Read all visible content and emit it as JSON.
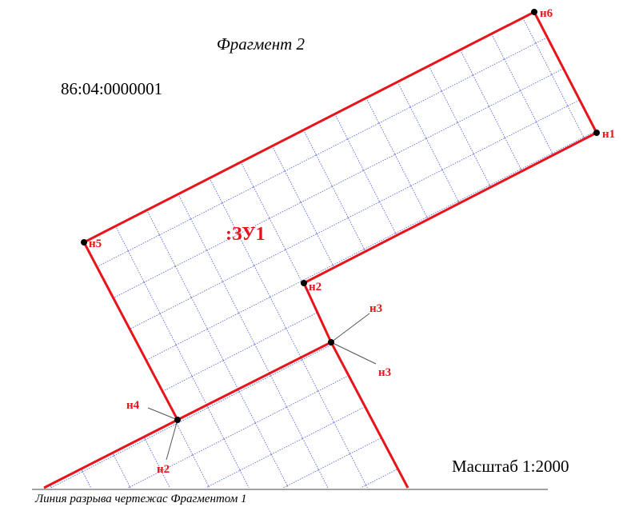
{
  "header": {
    "title": "Фрагмент 2",
    "quarter": "86:04:0000001"
  },
  "parcel": {
    "label": ":ЗУ1"
  },
  "points": {
    "n1": "н1",
    "n2": "н2",
    "n3": "н3",
    "n4": "н4",
    "n5": "н5",
    "n6": "н6",
    "n3_lower": "н3",
    "n2_lower": "н2"
  },
  "footer": {
    "scale": "Масштаб 1:2000",
    "break_line": "Линия разрыва чертежас Фрагментом 1"
  }
}
